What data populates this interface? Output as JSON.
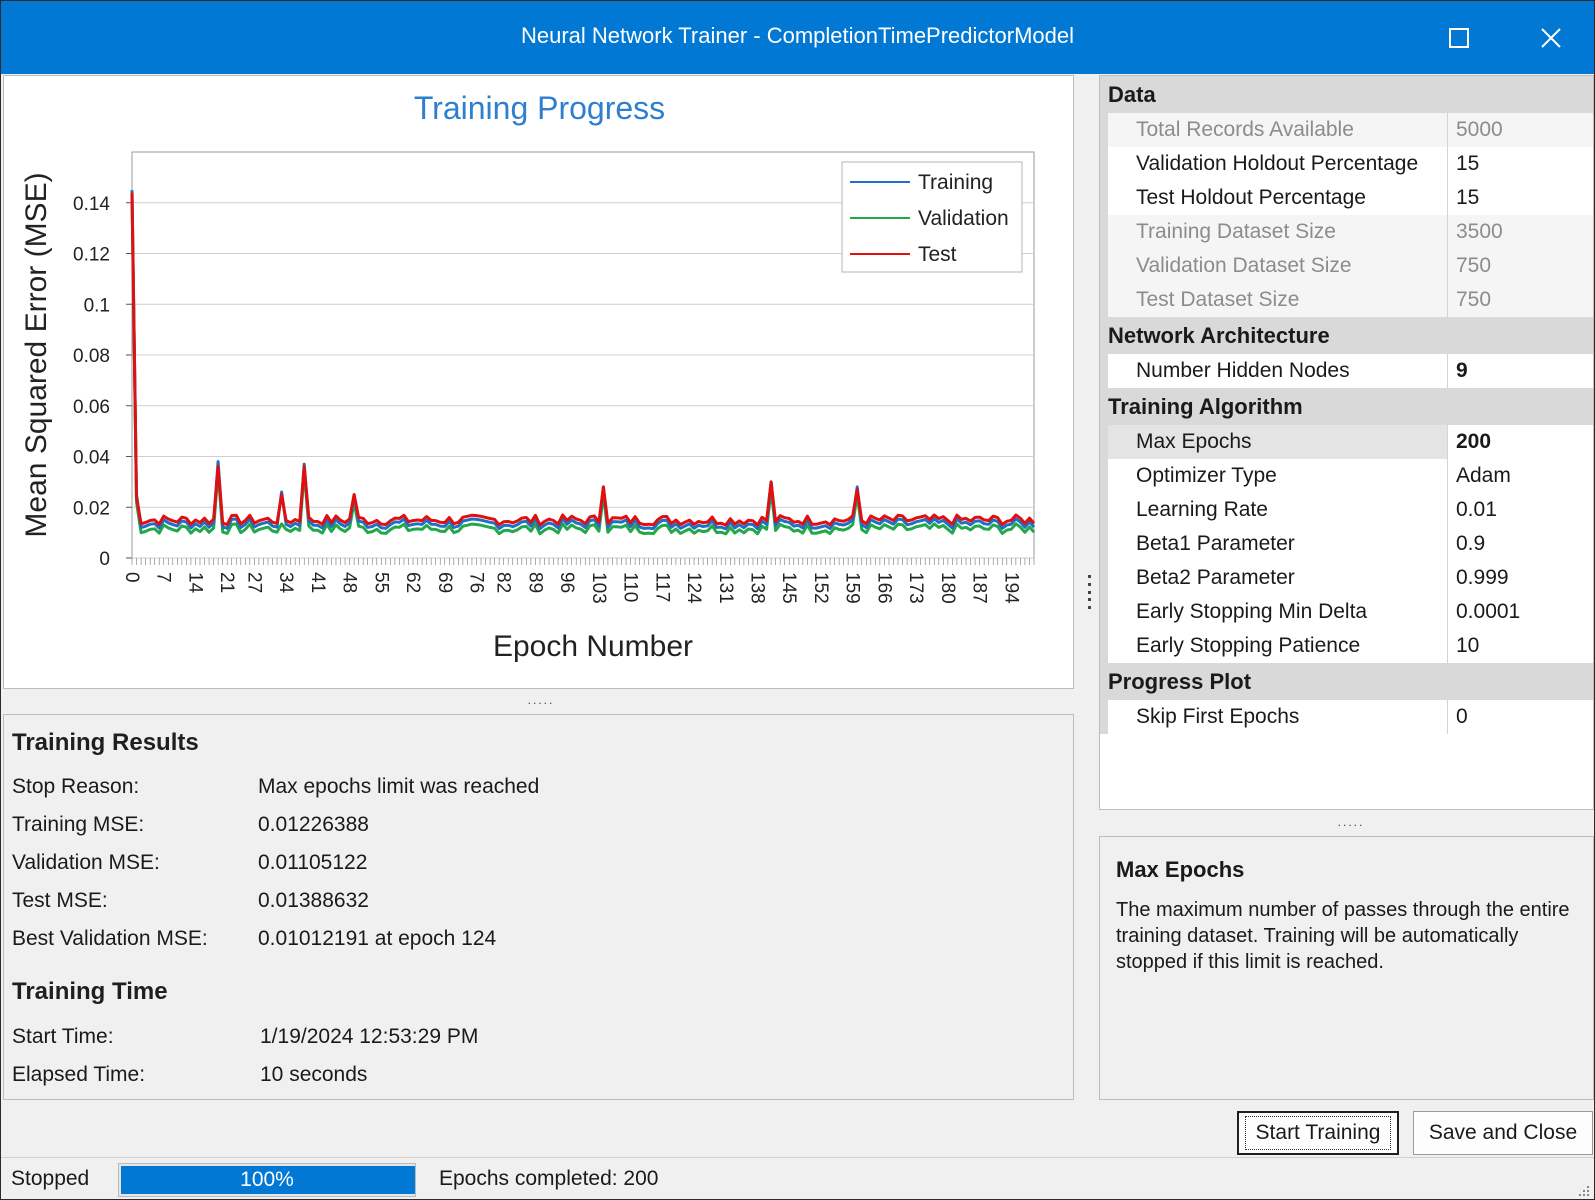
{
  "window": {
    "title": "Neural Network Trainer - CompletionTimePredictorModel"
  },
  "chart_data": {
    "type": "line",
    "title": "Training Progress",
    "xlabel": "Epoch Number",
    "ylabel": "Mean Squared Error (MSE)",
    "ylim": [
      0,
      0.16
    ],
    "yticks": [
      0,
      0.02,
      0.04,
      0.06,
      0.08,
      0.1,
      0.12,
      0.14
    ],
    "ytick_labels": [
      "0",
      "0.02",
      "0.04",
      "0.06",
      "0.08",
      "0.1",
      "0.12",
      "0.14"
    ],
    "xlim": [
      0,
      199
    ],
    "xticks": [
      0,
      7,
      14,
      21,
      27,
      34,
      41,
      48,
      55,
      62,
      69,
      76,
      82,
      89,
      96,
      103,
      110,
      117,
      124,
      131,
      138,
      145,
      152,
      159,
      166,
      173,
      180,
      187,
      194
    ],
    "grid": true,
    "legend_position": "top-right",
    "series": [
      {
        "name": "Training",
        "color": "#1f6fc6",
        "peaks": [
          [
            0,
            0.145
          ],
          [
            1,
            0.025
          ],
          [
            19,
            0.038
          ],
          [
            33,
            0.026
          ],
          [
            38,
            0.037
          ],
          [
            49,
            0.025
          ],
          [
            104,
            0.028
          ],
          [
            141,
            0.03
          ],
          [
            160,
            0.028
          ]
        ],
        "values_note_excluded": true
      },
      {
        "name": "Validation",
        "color": "#22a84a",
        "peaks": [
          [
            0,
            0.143
          ],
          [
            1,
            0.022
          ],
          [
            19,
            0.034
          ],
          [
            38,
            0.034
          ],
          [
            49,
            0.022
          ],
          [
            104,
            0.025
          ],
          [
            141,
            0.027
          ],
          [
            160,
            0.025
          ]
        ]
      },
      {
        "name": "Test",
        "color": "#e01010",
        "peaks": [
          [
            0,
            0.144
          ],
          [
            1,
            0.024
          ],
          [
            19,
            0.036
          ],
          [
            33,
            0.025
          ],
          [
            38,
            0.036
          ],
          [
            49,
            0.025
          ],
          [
            104,
            0.028
          ],
          [
            141,
            0.03
          ],
          [
            160,
            0.027
          ]
        ]
      }
    ]
  },
  "results": {
    "heading": "Training Results",
    "rows": [
      {
        "label": "Stop Reason:",
        "value": "Max epochs limit was reached"
      },
      {
        "label": "Training MSE:",
        "value": "0.01226388"
      },
      {
        "label": "Validation MSE:",
        "value": "0.01105122"
      },
      {
        "label": "Test MSE:",
        "value": "0.01388632"
      },
      {
        "label": "Best Validation MSE:",
        "value": "0.01012191 at epoch 124"
      }
    ]
  },
  "time": {
    "heading": "Training Time",
    "rows": [
      {
        "label": "Start Time:",
        "value": "1/19/2024 12:53:29 PM"
      },
      {
        "label": "Elapsed Time:",
        "value": "10 seconds"
      }
    ]
  },
  "grid": {
    "categories": [
      {
        "name": "Data",
        "rows": [
          {
            "name": "Total Records Available",
            "value": "5000",
            "readonly": true
          },
          {
            "name": "Validation Holdout Percentage",
            "value": "15"
          },
          {
            "name": "Test Holdout Percentage",
            "value": "15"
          },
          {
            "name": "Training Dataset Size",
            "value": "3500",
            "readonly": true
          },
          {
            "name": "Validation Dataset Size",
            "value": "750",
            "readonly": true
          },
          {
            "name": "Test Dataset Size",
            "value": "750",
            "readonly": true
          }
        ]
      },
      {
        "name": "Network Architecture",
        "rows": [
          {
            "name": "Number Hidden Nodes",
            "value": "9",
            "bold": true
          }
        ]
      },
      {
        "name": "Training Algorithm",
        "rows": [
          {
            "name": "Max Epochs",
            "value": "200",
            "bold": true,
            "selected": true
          },
          {
            "name": "Optimizer Type",
            "value": "Adam"
          },
          {
            "name": "Learning Rate",
            "value": "0.01"
          },
          {
            "name": "Beta1 Parameter",
            "value": "0.9"
          },
          {
            "name": "Beta2 Parameter",
            "value": "0.999"
          },
          {
            "name": "Early Stopping Min Delta",
            "value": "0.0001"
          },
          {
            "name": "Early Stopping Patience",
            "value": "10"
          }
        ]
      },
      {
        "name": "Progress Plot",
        "rows": [
          {
            "name": "Skip First Epochs",
            "value": "0"
          }
        ]
      }
    ]
  },
  "description": {
    "title": "Max Epochs",
    "text": "The maximum number of passes through the entire training dataset. Training will be automatically stopped if this limit is reached."
  },
  "buttons": {
    "start": "Start Training",
    "save": "Save and Close"
  },
  "status": {
    "state": "Stopped",
    "progress": 1.0,
    "progress_label": "100%",
    "epochs": "Epochs completed: 200"
  },
  "splitter_grip": "....."
}
